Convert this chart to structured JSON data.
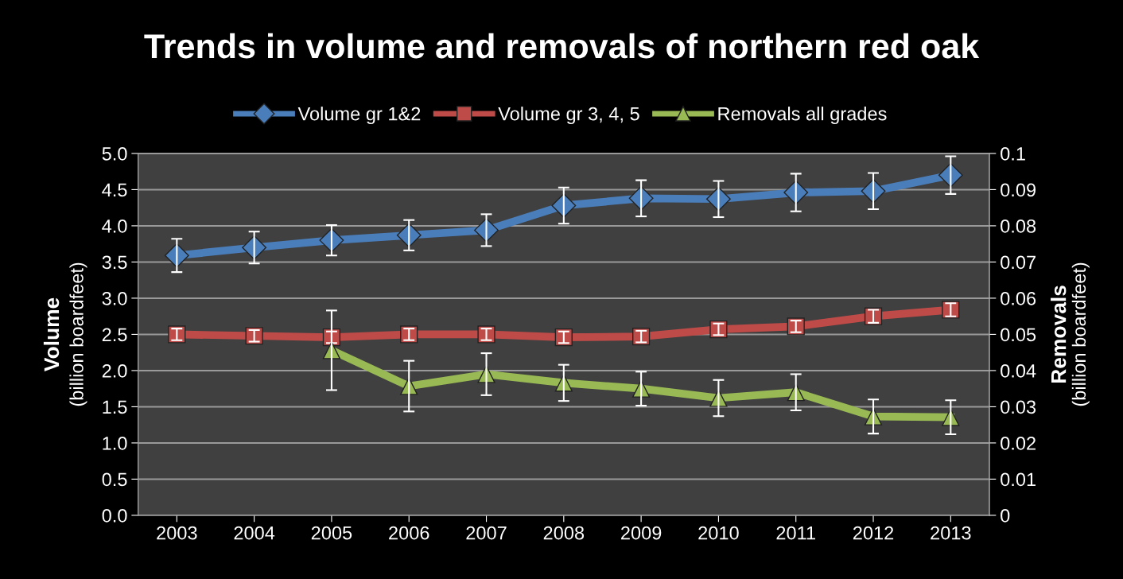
{
  "chart_data": {
    "type": "line",
    "title": "Trends in volume and removals of northern red oak",
    "categories": [
      "2003",
      "2004",
      "2005",
      "2006",
      "2007",
      "2008",
      "2009",
      "2010",
      "2011",
      "2012",
      "2013"
    ],
    "series": [
      {
        "name": "Volume gr 1&2",
        "color": "#4a7ebb",
        "marker": "diamond",
        "values": [
          3.59,
          3.7,
          3.8,
          3.87,
          3.94,
          4.28,
          4.38,
          4.37,
          4.46,
          4.48,
          4.7
        ],
        "errors": [
          0.23,
          0.22,
          0.21,
          0.21,
          0.22,
          0.25,
          0.25,
          0.25,
          0.26,
          0.25,
          0.26
        ]
      },
      {
        "name": "Volume gr 3, 4, 5",
        "color": "#be4b48",
        "marker": "square",
        "values": [
          2.5,
          2.48,
          2.46,
          2.5,
          2.5,
          2.46,
          2.47,
          2.57,
          2.61,
          2.75,
          2.84
        ],
        "errors": [
          0.08,
          0.08,
          0.08,
          0.08,
          0.08,
          0.08,
          0.08,
          0.08,
          0.08,
          0.09,
          0.09
        ]
      },
      {
        "name": "Removals all grades",
        "color": "#98b954",
        "marker": "triangle",
        "axis": "y2",
        "values": [
          null,
          null,
          0.0456,
          0.0357,
          0.039,
          0.0366,
          0.035,
          0.0324,
          0.034,
          0.0273,
          0.0271
        ],
        "errors": [
          null,
          null,
          0.011,
          0.007,
          0.0058,
          0.005,
          0.0047,
          0.005,
          0.005,
          0.0047,
          0.0047
        ]
      }
    ],
    "ylabel": "Volume\n(billion boardfeet)",
    "y2label": "Removals\n(billion boardfeet)",
    "ylim": [
      0,
      5
    ],
    "yticks": [
      {
        "value": 0,
        "label": "0.0"
      },
      {
        "value": 0.5,
        "label": "0.5"
      },
      {
        "value": 1,
        "label": "1.0"
      },
      {
        "value": 1.5,
        "label": "1.5"
      },
      {
        "value": 2,
        "label": "2.0"
      },
      {
        "value": 2.5,
        "label": "2.5"
      },
      {
        "value": 3,
        "label": "3.0"
      },
      {
        "value": 3.5,
        "label": "3.5"
      },
      {
        "value": 4,
        "label": "4.0"
      },
      {
        "value": 4.5,
        "label": "4.5"
      },
      {
        "value": 5,
        "label": "5.0"
      }
    ],
    "y2lim": [
      0,
      0.1
    ],
    "y2ticks": [
      0,
      0.01,
      0.02,
      0.03,
      0.04,
      0.05,
      0.06,
      0.07,
      0.08,
      0.09,
      0.1
    ],
    "grid": "y",
    "legend": "top",
    "line_style": "solid"
  }
}
